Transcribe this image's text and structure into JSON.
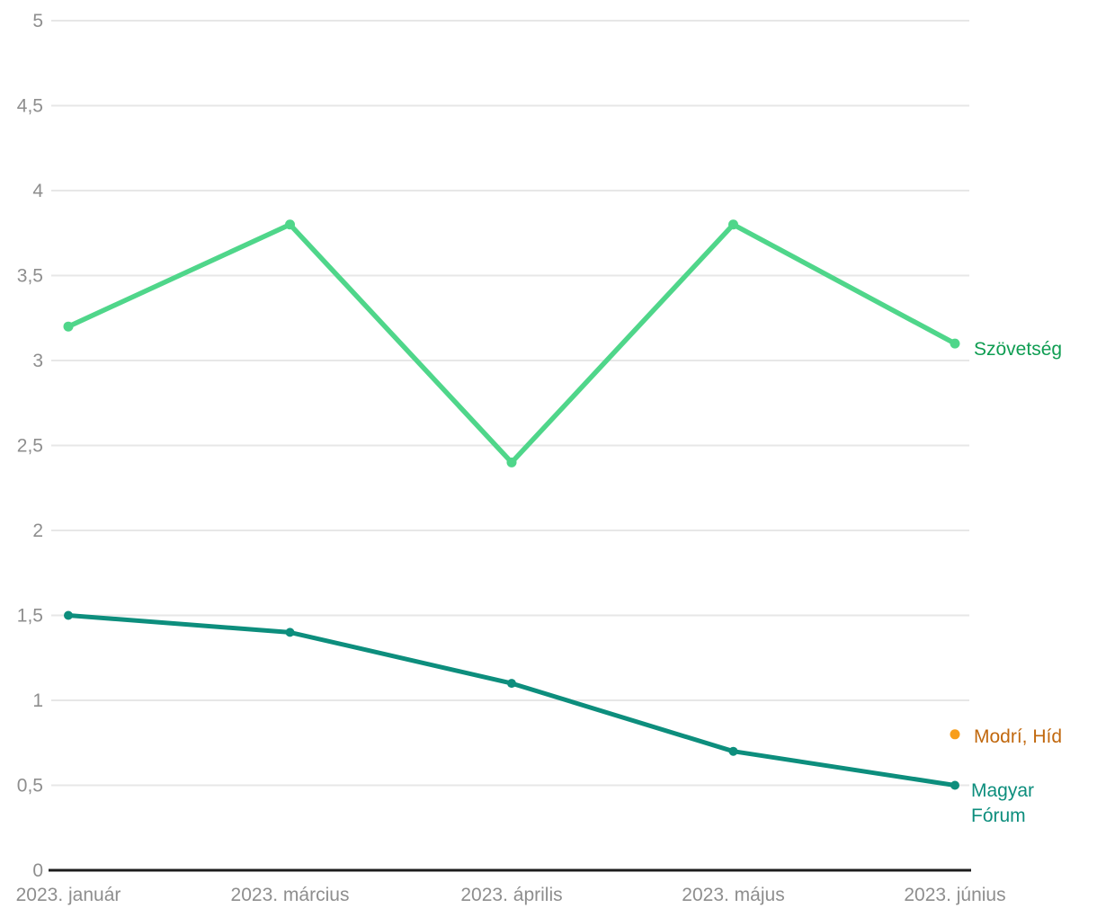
{
  "chart_data": {
    "type": "line",
    "title": "",
    "xlabel": "",
    "ylabel": "",
    "x_categories": [
      "2023. január",
      "2023. március",
      "2023. április",
      "2023. május",
      "2023. június"
    ],
    "ylim": [
      0,
      5
    ],
    "y_tick_values": [
      0,
      0.5,
      1,
      1.5,
      2,
      2.5,
      3,
      3.5,
      4,
      4.5,
      5
    ],
    "y_tick_labels": [
      "0",
      "0,5",
      "1",
      "1,5",
      "2",
      "2,5",
      "3",
      "3,5",
      "4",
      "4,5",
      "5"
    ],
    "grid": true,
    "legend_position": "end-of-line-labels-right",
    "series": [
      {
        "name": "Szövetség",
        "line_color": "#4fd68a",
        "label_color": "#0f9d52",
        "values": [
          3.2,
          3.8,
          2.4,
          3.8,
          3.1
        ]
      },
      {
        "name": "Modrí, Híd",
        "line_color": "#f89e1b",
        "label_color": "#c1680e",
        "values": [
          null,
          null,
          null,
          null,
          0.8
        ]
      },
      {
        "name": "Magyar Fórum",
        "line_color": "#0d8e7d",
        "label_color": "#0d8e7d",
        "values": [
          1.5,
          1.4,
          1.1,
          0.7,
          0.5
        ]
      }
    ],
    "colors": {
      "tick_label": "#8e8e8e",
      "gridline": "#e7e7e7",
      "axis_line": "#1c1c1c",
      "background": "#ffffff"
    }
  }
}
